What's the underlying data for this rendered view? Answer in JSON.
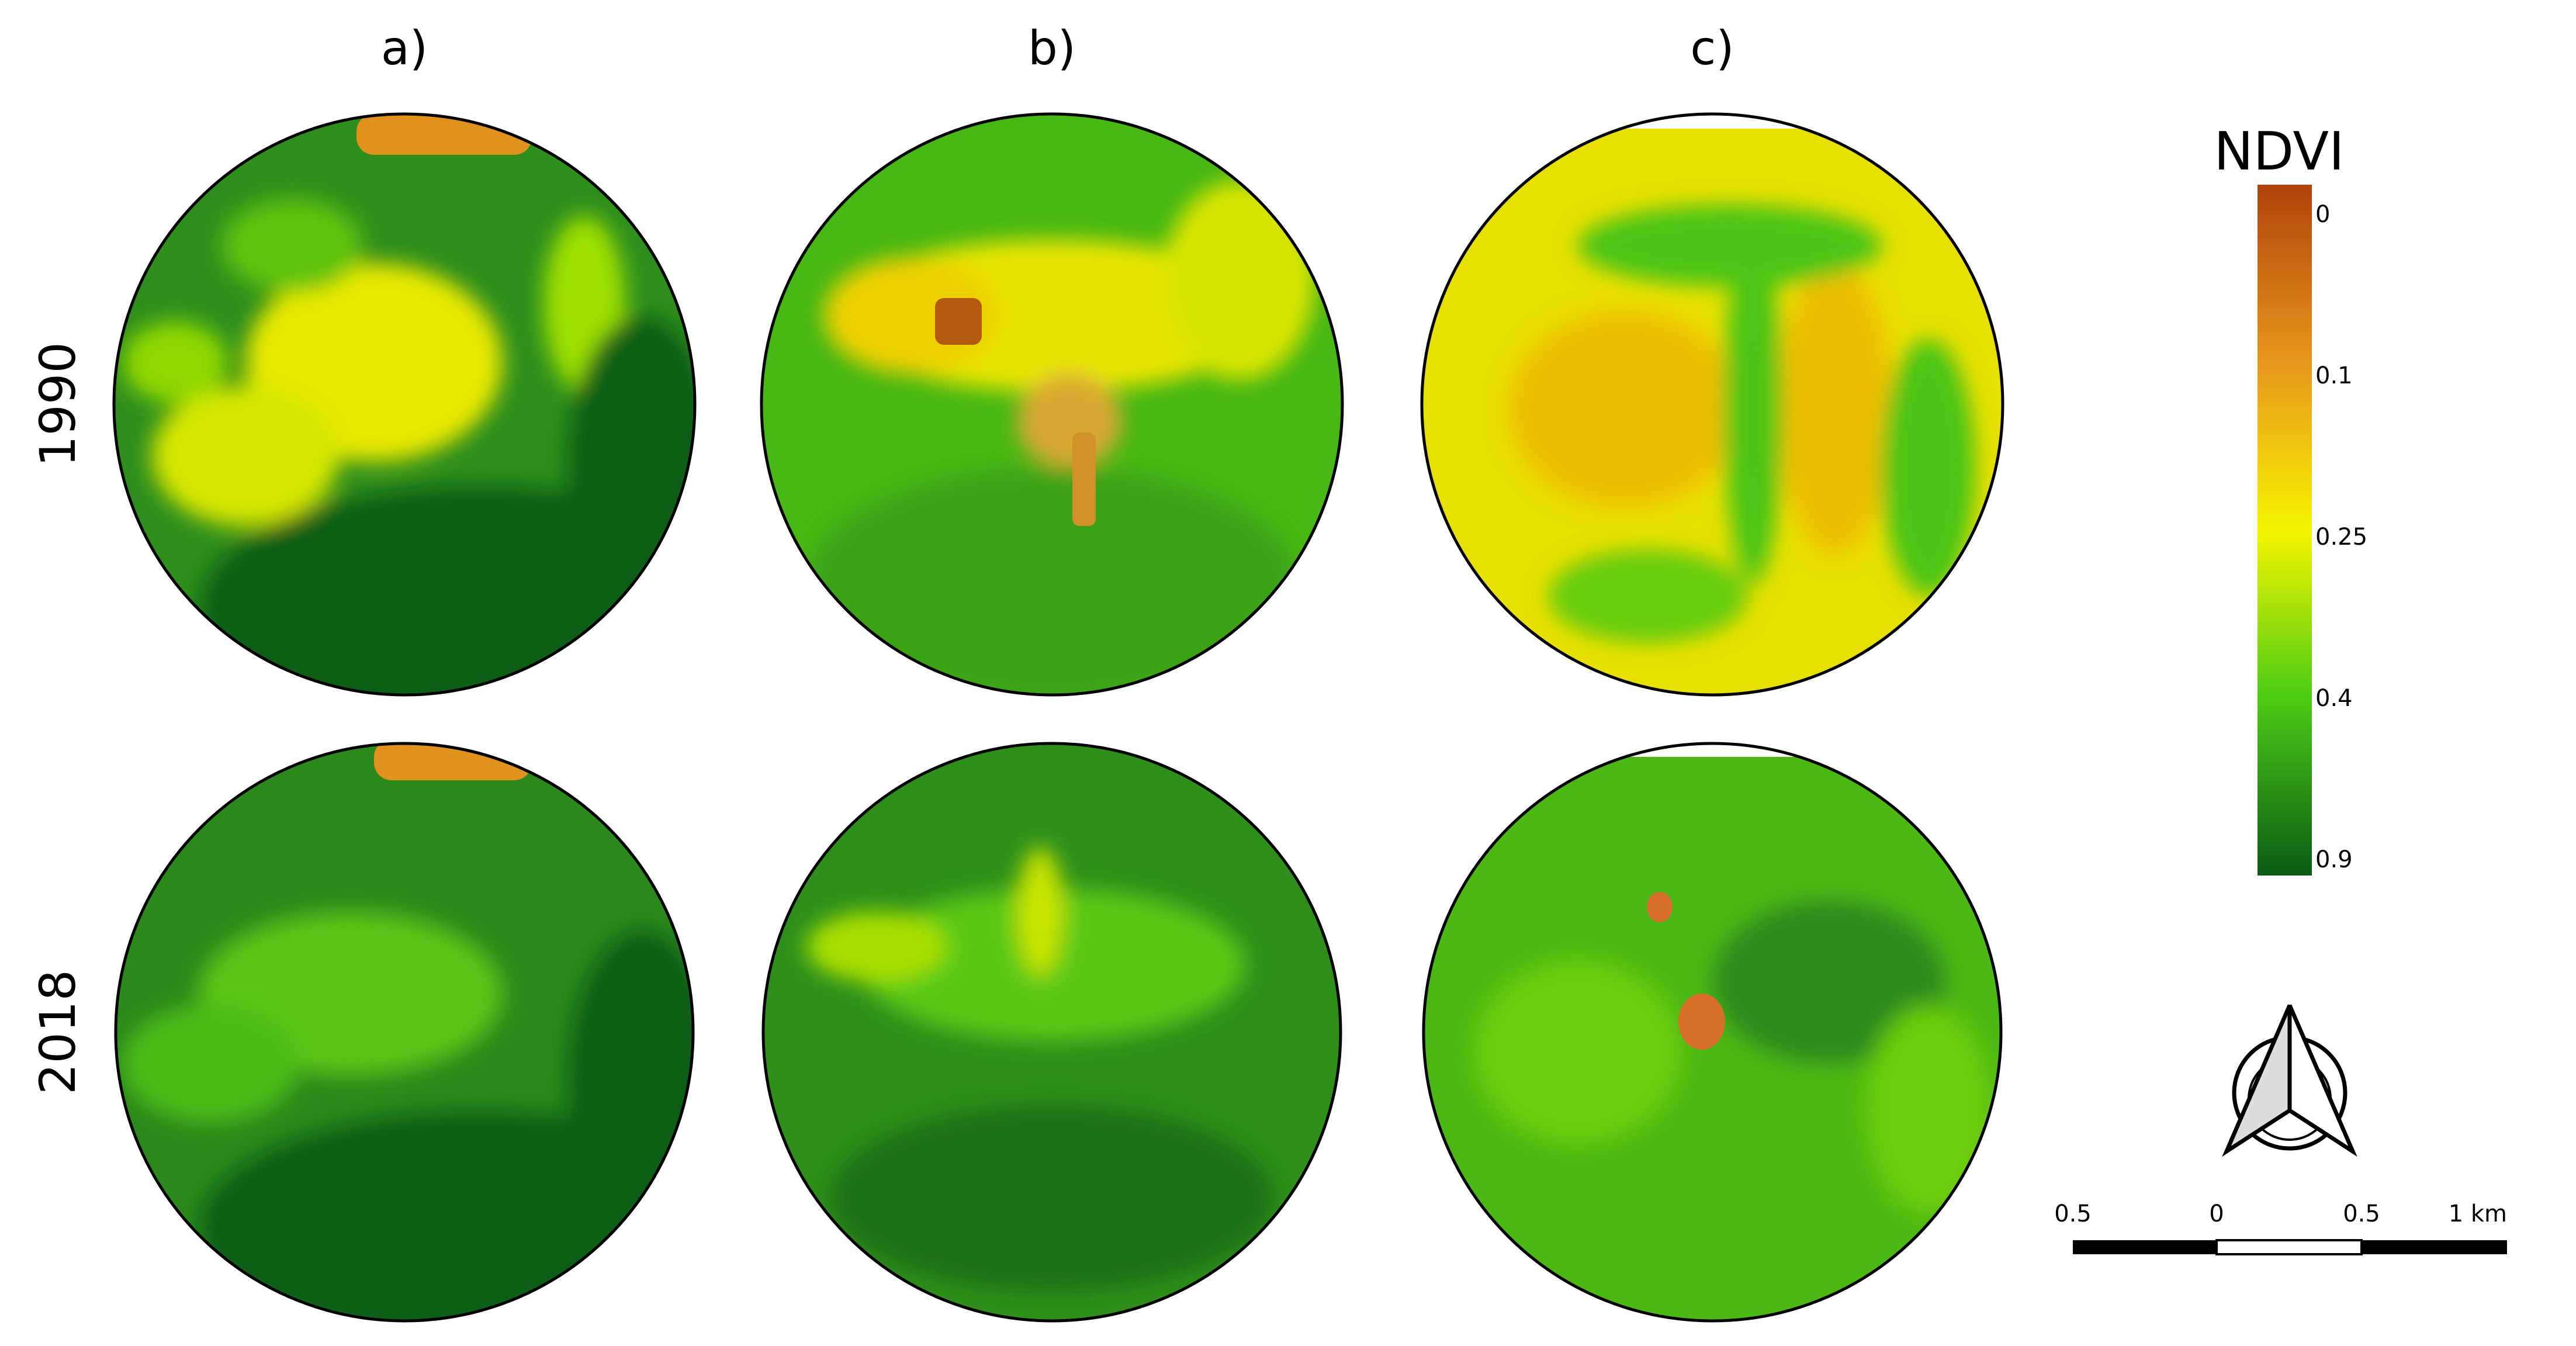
{
  "columns": [
    "a)",
    "b)",
    "c)"
  ],
  "rows": [
    "1990",
    "2018"
  ],
  "legend": {
    "title": "NDVI",
    "labels": [
      "0",
      "0.1",
      "0.25",
      "0.4",
      "0.9"
    ]
  },
  "scale_bar": {
    "labels": [
      "0.5",
      "0",
      "0.5",
      "1 km"
    ]
  }
}
